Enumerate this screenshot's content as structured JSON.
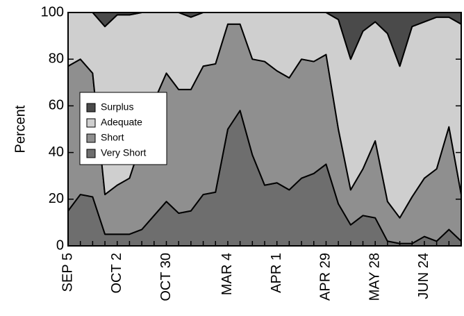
{
  "chart_data": {
    "type": "stacked-area",
    "y_label": "Percent",
    "categories": [
      "SEP 5",
      null,
      null,
      null,
      "OCT 2",
      null,
      null,
      null,
      "OCT 30",
      null,
      null,
      null,
      null,
      "MAR 4",
      null,
      null,
      null,
      "APR 1",
      null,
      null,
      null,
      "APR 29",
      null,
      null,
      null,
      "MAY 28",
      null,
      null,
      null,
      "JUN 24",
      null,
      null,
      null
    ],
    "series": [
      {
        "name": "Very Short",
        "color": "#6e6e6e",
        "values": [
          15,
          22,
          21,
          5,
          5,
          5,
          7,
          13,
          19,
          14,
          15,
          22,
          23,
          50,
          58,
          39,
          26,
          27,
          24,
          29,
          31,
          35,
          18,
          9,
          13,
          12,
          2,
          1,
          1,
          4,
          2,
          7,
          2
        ]
      },
      {
        "name": "Short",
        "color": "#8f8f8f",
        "values": [
          62,
          58,
          53,
          17,
          21,
          24,
          38,
          49,
          55,
          53,
          52,
          55,
          55,
          45,
          37,
          41,
          53,
          48,
          48,
          51,
          48,
          47,
          32,
          15,
          20,
          33,
          17,
          11,
          20,
          25,
          31,
          44,
          20
        ]
      },
      {
        "name": "Adequate",
        "color": "#cfcfcf",
        "values": [
          23,
          20,
          26,
          72,
          73,
          70,
          55,
          38,
          26,
          33,
          31,
          23,
          22,
          5,
          5,
          20,
          21,
          25,
          28,
          20,
          21,
          18,
          47,
          56,
          59,
          51,
          72,
          65,
          73,
          67,
          65,
          47,
          73
        ]
      },
      {
        "name": "Surplus",
        "color": "#4a4a4a",
        "values": [
          0,
          0,
          0,
          6,
          1,
          1,
          0,
          0,
          0,
          0,
          2,
          0,
          0,
          0,
          0,
          0,
          0,
          0,
          0,
          0,
          0,
          0,
          3,
          20,
          8,
          4,
          9,
          23,
          6,
          4,
          2,
          2,
          5
        ]
      }
    ],
    "ylim": [
      0,
      100
    ],
    "yticks": [
      0,
      20,
      40,
      60,
      80,
      100
    ],
    "legend": "left"
  }
}
